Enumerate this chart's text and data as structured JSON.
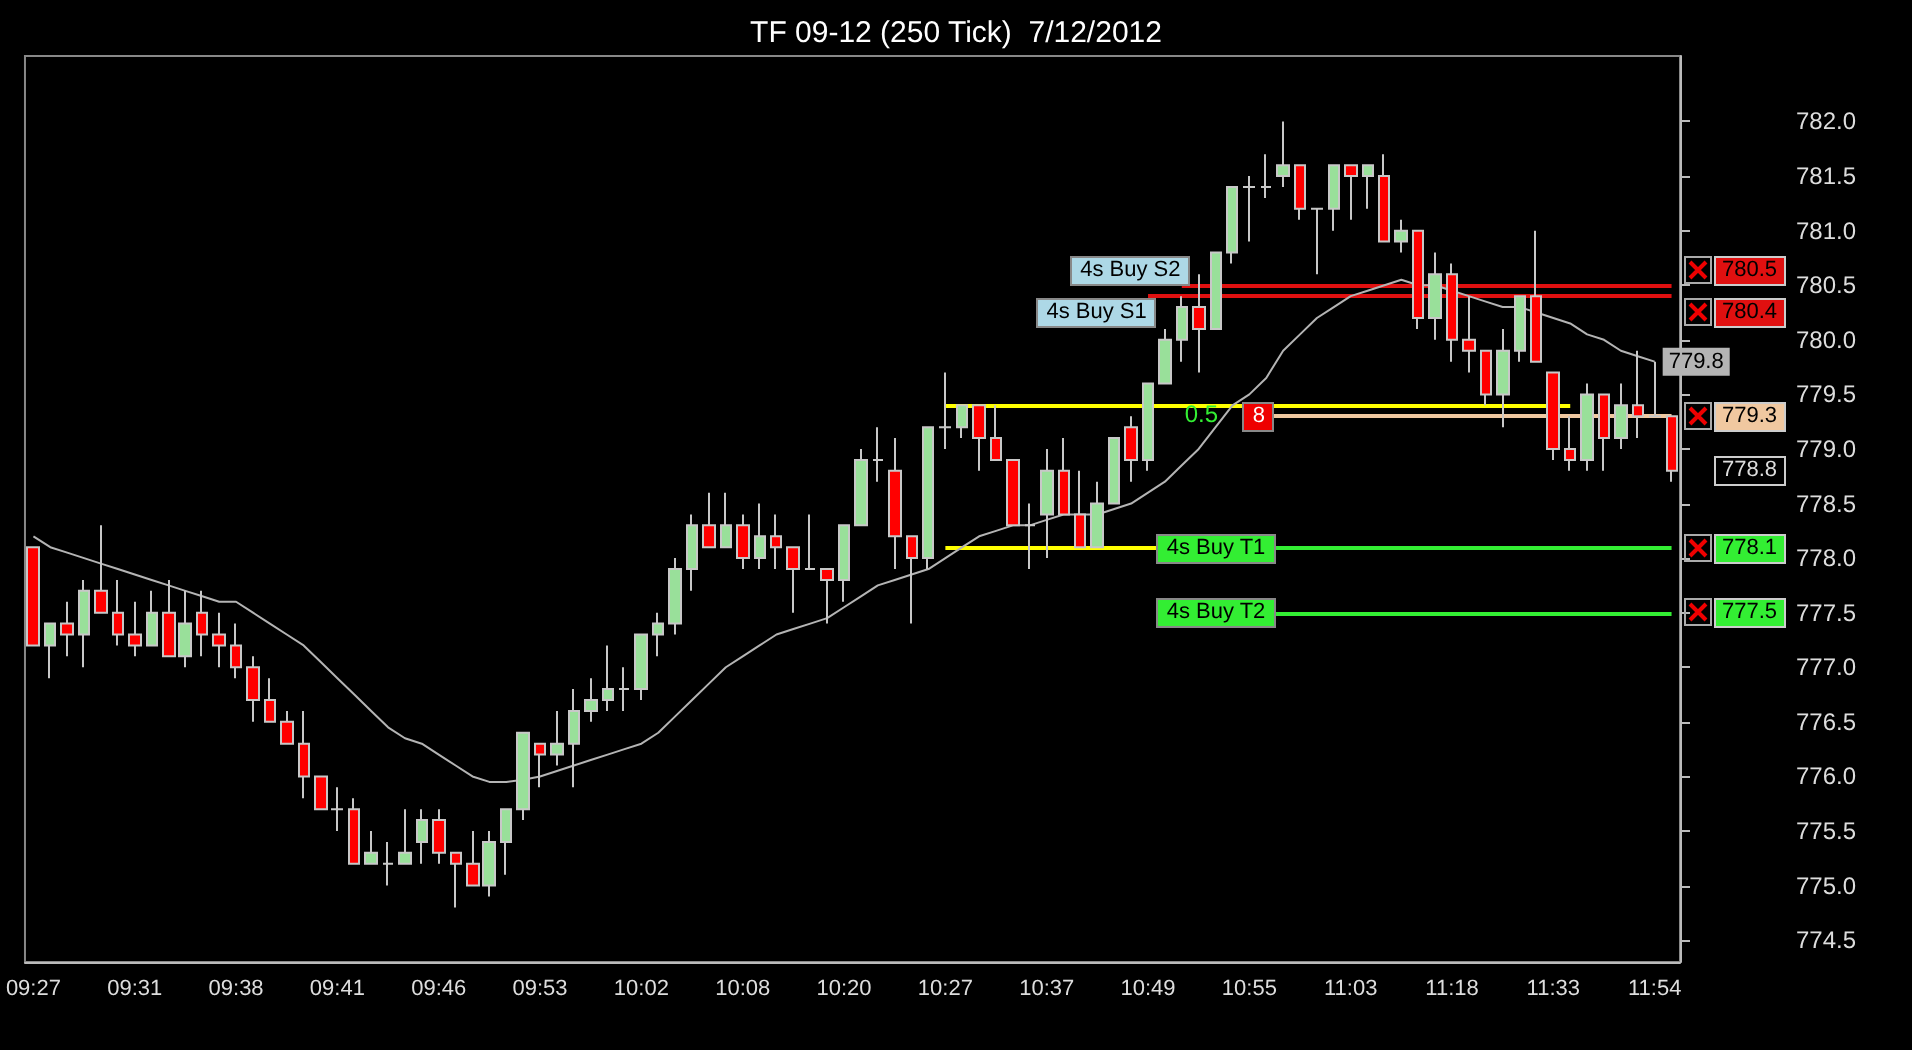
{
  "chart_data": {
    "type": "candlestick",
    "title": "TF 09-12 (250 Tick)  7/12/2012",
    "categories": [
      "09:27",
      null,
      null,
      null,
      null,
      null,
      "09:31",
      null,
      null,
      null,
      null,
      null,
      "09:38",
      null,
      null,
      null,
      null,
      null,
      "09:41",
      null,
      null,
      null,
      null,
      null,
      "09:46",
      null,
      null,
      null,
      null,
      null,
      "09:53",
      null,
      null,
      null,
      null,
      null,
      "10:02",
      null,
      null,
      null,
      null,
      null,
      "10:08",
      null,
      null,
      null,
      null,
      null,
      "10:20",
      null,
      null,
      null,
      null,
      null,
      "10:27",
      null,
      null,
      null,
      null,
      null,
      "10:37",
      null,
      null,
      null,
      null,
      null,
      "10:49",
      null,
      null,
      null,
      null,
      null,
      "10:55",
      null,
      null,
      null,
      null,
      null,
      "11:03",
      null,
      null,
      null,
      null,
      null,
      "11:18",
      null,
      null,
      null,
      null,
      null,
      "11:33",
      null,
      null,
      null,
      null,
      null,
      "11:54",
      null
    ],
    "ohlc": [
      [
        778.1,
        778.1,
        777.2,
        777.2
      ],
      [
        777.2,
        777.4,
        776.9,
        777.4
      ],
      [
        777.4,
        777.6,
        777.1,
        777.3
      ],
      [
        777.3,
        777.8,
        777.0,
        777.7
      ],
      [
        777.7,
        778.3,
        777.5,
        777.5
      ],
      [
        777.5,
        777.8,
        777.2,
        777.3
      ],
      [
        777.3,
        777.6,
        777.1,
        777.2
      ],
      [
        777.2,
        777.7,
        777.2,
        777.5
      ],
      [
        777.5,
        777.8,
        777.1,
        777.1
      ],
      [
        777.1,
        777.7,
        777.0,
        777.4
      ],
      [
        777.5,
        777.7,
        777.1,
        777.3
      ],
      [
        777.3,
        777.5,
        777.0,
        777.2
      ],
      [
        777.2,
        777.4,
        776.9,
        777.0
      ],
      [
        777.0,
        777.1,
        776.5,
        776.7
      ],
      [
        776.7,
        776.9,
        776.5,
        776.5
      ],
      [
        776.5,
        776.6,
        776.3,
        776.3
      ],
      [
        776.3,
        776.6,
        775.8,
        776.0
      ],
      [
        776.0,
        776.0,
        775.7,
        775.7
      ],
      [
        775.7,
        775.9,
        775.5,
        775.7
      ],
      [
        775.7,
        775.8,
        775.2,
        775.2
      ],
      [
        775.2,
        775.5,
        775.2,
        775.3
      ],
      [
        775.2,
        775.4,
        775.0,
        775.2
      ],
      [
        775.2,
        775.7,
        775.2,
        775.3
      ],
      [
        775.4,
        775.7,
        775.2,
        775.6
      ],
      [
        775.6,
        775.7,
        775.2,
        775.3
      ],
      [
        775.3,
        775.3,
        774.8,
        775.2
      ],
      [
        775.2,
        775.5,
        775.0,
        775.0
      ],
      [
        775.0,
        775.5,
        774.9,
        775.4
      ],
      [
        775.4,
        775.7,
        775.1,
        775.7
      ],
      [
        775.7,
        776.4,
        775.6,
        776.4
      ],
      [
        776.3,
        776.3,
        775.9,
        776.2
      ],
      [
        776.2,
        776.6,
        776.1,
        776.3
      ],
      [
        776.3,
        776.8,
        775.9,
        776.6
      ],
      [
        776.6,
        776.9,
        776.5,
        776.7
      ],
      [
        776.7,
        777.2,
        776.6,
        776.8
      ],
      [
        776.8,
        777.0,
        776.6,
        776.8
      ],
      [
        776.8,
        777.3,
        776.7,
        777.3
      ],
      [
        777.3,
        777.5,
        777.1,
        777.4
      ],
      [
        777.4,
        778.0,
        777.3,
        777.9
      ],
      [
        777.9,
        778.4,
        777.7,
        778.3
      ],
      [
        778.3,
        778.6,
        778.1,
        778.1
      ],
      [
        778.1,
        778.6,
        778.1,
        778.3
      ],
      [
        778.3,
        778.4,
        777.9,
        778.0
      ],
      [
        778.0,
        778.5,
        777.9,
        778.2
      ],
      [
        778.2,
        778.4,
        777.9,
        778.1
      ],
      [
        778.1,
        778.1,
        777.5,
        777.9
      ],
      [
        777.9,
        778.4,
        777.9,
        777.9
      ],
      [
        777.9,
        777.9,
        777.4,
        777.8
      ],
      [
        777.8,
        778.3,
        777.6,
        778.3
      ],
      [
        778.3,
        779.0,
        778.3,
        778.9
      ],
      [
        778.9,
        779.2,
        778.7,
        778.9
      ],
      [
        778.8,
        779.1,
        777.9,
        778.2
      ],
      [
        778.2,
        778.2,
        777.4,
        778.0
      ],
      [
        778.0,
        779.2,
        777.9,
        779.2
      ],
      [
        779.2,
        779.7,
        779.0,
        779.2
      ],
      [
        779.2,
        779.4,
        779.1,
        779.4
      ],
      [
        779.4,
        779.4,
        778.8,
        779.1
      ],
      [
        779.1,
        779.4,
        778.9,
        778.9
      ],
      [
        778.9,
        778.9,
        778.3,
        778.3
      ],
      [
        778.3,
        778.5,
        777.9,
        778.3
      ],
      [
        778.4,
        779.0,
        778.0,
        778.8
      ],
      [
        778.8,
        779.1,
        778.4,
        778.4
      ],
      [
        778.4,
        778.8,
        778.1,
        778.1
      ],
      [
        778.1,
        778.7,
        778.1,
        778.5
      ],
      [
        778.5,
        779.1,
        778.5,
        779.1
      ],
      [
        779.2,
        779.3,
        778.7,
        778.9
      ],
      [
        778.9,
        779.6,
        778.8,
        779.6
      ],
      [
        779.6,
        780.1,
        779.6,
        780.0
      ],
      [
        780.0,
        780.4,
        779.8,
        780.3
      ],
      [
        780.3,
        780.6,
        779.7,
        780.1
      ],
      [
        780.1,
        780.8,
        780.1,
        780.8
      ],
      [
        780.8,
        781.4,
        780.7,
        781.4
      ],
      [
        781.4,
        781.5,
        780.9,
        781.4
      ],
      [
        781.4,
        781.7,
        781.3,
        781.4
      ],
      [
        781.5,
        782.0,
        781.4,
        781.6
      ],
      [
        781.6,
        781.6,
        781.1,
        781.2
      ],
      [
        781.2,
        781.2,
        780.6,
        781.2
      ],
      [
        781.2,
        781.6,
        781.0,
        781.6
      ],
      [
        781.6,
        781.6,
        781.1,
        781.5
      ],
      [
        781.5,
        781.6,
        781.2,
        781.6
      ],
      [
        781.5,
        781.7,
        780.9,
        780.9
      ],
      [
        780.9,
        781.1,
        780.8,
        781.0
      ],
      [
        781.0,
        781.0,
        780.1,
        780.2
      ],
      [
        780.2,
        780.8,
        780.0,
        780.6
      ],
      [
        780.6,
        780.7,
        779.8,
        780.0
      ],
      [
        780.0,
        780.4,
        779.7,
        779.9
      ],
      [
        779.9,
        779.9,
        779.4,
        779.5
      ],
      [
        779.5,
        780.1,
        779.2,
        779.9
      ],
      [
        779.9,
        780.4,
        779.8,
        780.4
      ],
      [
        780.4,
        781.0,
        779.8,
        779.8
      ],
      [
        779.7,
        779.7,
        778.9,
        779.0
      ],
      [
        779.0,
        779.3,
        778.8,
        778.9
      ],
      [
        778.9,
        779.6,
        778.8,
        779.5
      ],
      [
        779.5,
        779.5,
        778.8,
        779.1
      ],
      [
        779.1,
        779.6,
        779.0,
        779.4
      ],
      [
        779.4,
        779.9,
        779.1,
        779.3
      ],
      [
        779.3,
        779.8,
        779.3,
        779.3
      ],
      [
        779.3,
        779.3,
        778.7,
        778.8
      ]
    ],
    "colors": [
      "#ff0000",
      "#99e09a",
      "#ff0000",
      "#99e09a",
      "#ff0000",
      "#ff0000",
      "#ff0000",
      "#99e09a",
      "#ff0000",
      "#99e09a",
      "#ff0000",
      "#ff0000",
      "#ff0000",
      "#ff0000",
      "#ff0000",
      "#ff0000",
      "#ff0000",
      "#ff0000",
      "#c8c8c8",
      "#ff0000",
      "#99e09a",
      "#c8c8c8",
      "#99e09a",
      "#99e09a",
      "#ff0000",
      "#ff0000",
      "#ff0000",
      "#99e09a",
      "#99e09a",
      "#99e09a",
      "#ff0000",
      "#99e09a",
      "#99e09a",
      "#99e09a",
      "#99e09a",
      "#c8c8c8",
      "#99e09a",
      "#99e09a",
      "#99e09a",
      "#99e09a",
      "#ff0000",
      "#99e09a",
      "#ff0000",
      "#99e09a",
      "#ff0000",
      "#ff0000",
      "#c8c8c8",
      "#ff0000",
      "#99e09a",
      "#99e09a",
      "#c8c8c8",
      "#ff0000",
      "#ff0000",
      "#99e09a",
      "#c8c8c8",
      "#99e09a",
      "#ff0000",
      "#ff0000",
      "#ff0000",
      "#c8c8c8",
      "#99e09a",
      "#ff0000",
      "#ff0000",
      "#99e09a",
      "#99e09a",
      "#ff0000",
      "#99e09a",
      "#99e09a",
      "#99e09a",
      "#ff0000",
      "#99e09a",
      "#99e09a",
      "#c8c8c8",
      "#c8c8c8",
      "#99e09a",
      "#ff0000",
      "#c8c8c8",
      "#99e09a",
      "#ff0000",
      "#99e09a",
      "#ff0000",
      "#99e09a",
      "#ff0000",
      "#99e09a",
      "#ff0000",
      "#ff0000",
      "#ff0000",
      "#99e09a",
      "#99e09a",
      "#ff0000",
      "#ff0000",
      "#ff0000",
      "#99e09a",
      "#ff0000",
      "#99e09a",
      "#ff0000",
      "#c8c8c8",
      "#ff0000"
    ],
    "series": [
      {
        "type": "line",
        "color": "#b4b4b4",
        "value_labels": [
          null,
          null,
          null,
          null,
          null,
          null,
          null,
          null,
          null,
          null,
          null,
          null,
          null,
          null,
          null,
          null,
          null,
          null,
          null,
          null,
          null,
          null,
          null,
          null,
          null,
          null,
          null,
          null,
          null,
          null,
          null,
          null,
          null,
          null,
          null,
          null,
          null,
          null,
          null,
          null,
          null,
          null,
          null,
          null,
          null,
          null,
          null,
          null,
          null,
          null,
          null,
          null,
          null,
          null,
          null,
          null,
          null,
          null,
          null,
          null,
          null,
          null,
          null,
          null,
          null,
          null,
          null,
          null,
          null,
          null,
          null,
          null,
          null,
          null,
          null,
          null,
          null,
          null,
          null,
          null,
          null,
          null,
          null,
          null,
          null,
          null,
          null,
          null,
          null,
          null,
          null,
          null,
          null,
          null,
          null,
          null,
          "779.8",
          null
        ],
        "values": [
          778.2,
          778.1,
          778.05,
          778.0,
          777.95,
          777.9,
          777.85,
          777.8,
          777.75,
          777.7,
          777.65,
          777.6,
          777.6,
          777.5,
          777.4,
          777.3,
          777.2,
          777.05,
          776.9,
          776.75,
          776.6,
          776.45,
          776.35,
          776.3,
          776.2,
          776.1,
          776.0,
          775.95,
          775.95,
          775.97,
          776.0,
          776.05,
          776.1,
          776.15,
          776.2,
          776.25,
          776.3,
          776.4,
          776.55,
          776.7,
          776.85,
          777.0,
          777.1,
          777.2,
          777.3,
          777.35,
          777.4,
          777.45,
          777.55,
          777.65,
          777.75,
          777.8,
          777.85,
          777.9,
          778.0,
          778.1,
          778.2,
          778.25,
          778.3,
          778.3,
          778.35,
          778.4,
          778.4,
          778.4,
          778.45,
          778.5,
          778.6,
          778.7,
          778.85,
          779.0,
          779.2,
          779.4,
          779.5,
          779.65,
          779.9,
          780.05,
          780.2,
          780.3,
          780.4,
          780.45,
          780.5,
          780.55,
          780.5,
          780.5,
          780.45,
          780.4,
          780.35,
          780.3,
          780.3,
          780.25,
          780.2,
          780.15,
          780.05,
          780.0,
          779.9,
          779.85,
          779.8,
          null
        ]
      }
    ],
    "marker": "none",
    "ylim": [
      774.3,
      782.6
    ],
    "yticks": [
      {
        "value": 774.5,
        "label": "774.5"
      },
      {
        "value": 775,
        "label": "775.0"
      },
      {
        "value": 775.5,
        "label": "775.5"
      },
      {
        "value": 776,
        "label": "776.0"
      },
      {
        "value": 776.5,
        "label": "776.5"
      },
      {
        "value": 777,
        "label": "777.0"
      },
      {
        "value": 777.5,
        "label": "777.5"
      },
      {
        "value": 778,
        "label": "778.0"
      },
      {
        "value": 778.5,
        "label": "778.5"
      },
      {
        "value": 779,
        "label": "779.0"
      },
      {
        "value": 779.5,
        "label": "779.5"
      },
      {
        "value": 780,
        "label": "780.0"
      },
      {
        "value": 780.5,
        "label": "780.5"
      },
      {
        "value": 781,
        "label": "781.0"
      },
      {
        "value": 781.5,
        "label": "781.5"
      },
      {
        "value": 782,
        "label": "782.0"
      }
    ],
    "ref_lines": [
      {
        "axis": "y",
        "value": 780.5,
        "label": "780.5",
        "color": "#e01010"
      },
      {
        "axis": "y",
        "value": 780.4,
        "label": "780.4",
        "color": "#e01010"
      },
      {
        "axis": "y",
        "value": 779.4,
        "color": "#ffff00"
      },
      {
        "axis": "y",
        "value": 779.3,
        "label": "779.3",
        "color": "#f0c8a0"
      },
      {
        "axis": "y",
        "value": 778.1,
        "color": "#ffff00"
      },
      {
        "axis": "y",
        "value": 778.1,
        "label": "778.1",
        "color": "#33ee33"
      },
      {
        "axis": "y",
        "value": 777.5,
        "label": "777.5",
        "color": "#33ee33"
      }
    ],
    "annotations": [
      "4s Buy S2",
      "4s Buy S1",
      "8",
      "4s Buy T1",
      "4s Buy T2",
      "0.5",
      "778.8"
    ]
  }
}
